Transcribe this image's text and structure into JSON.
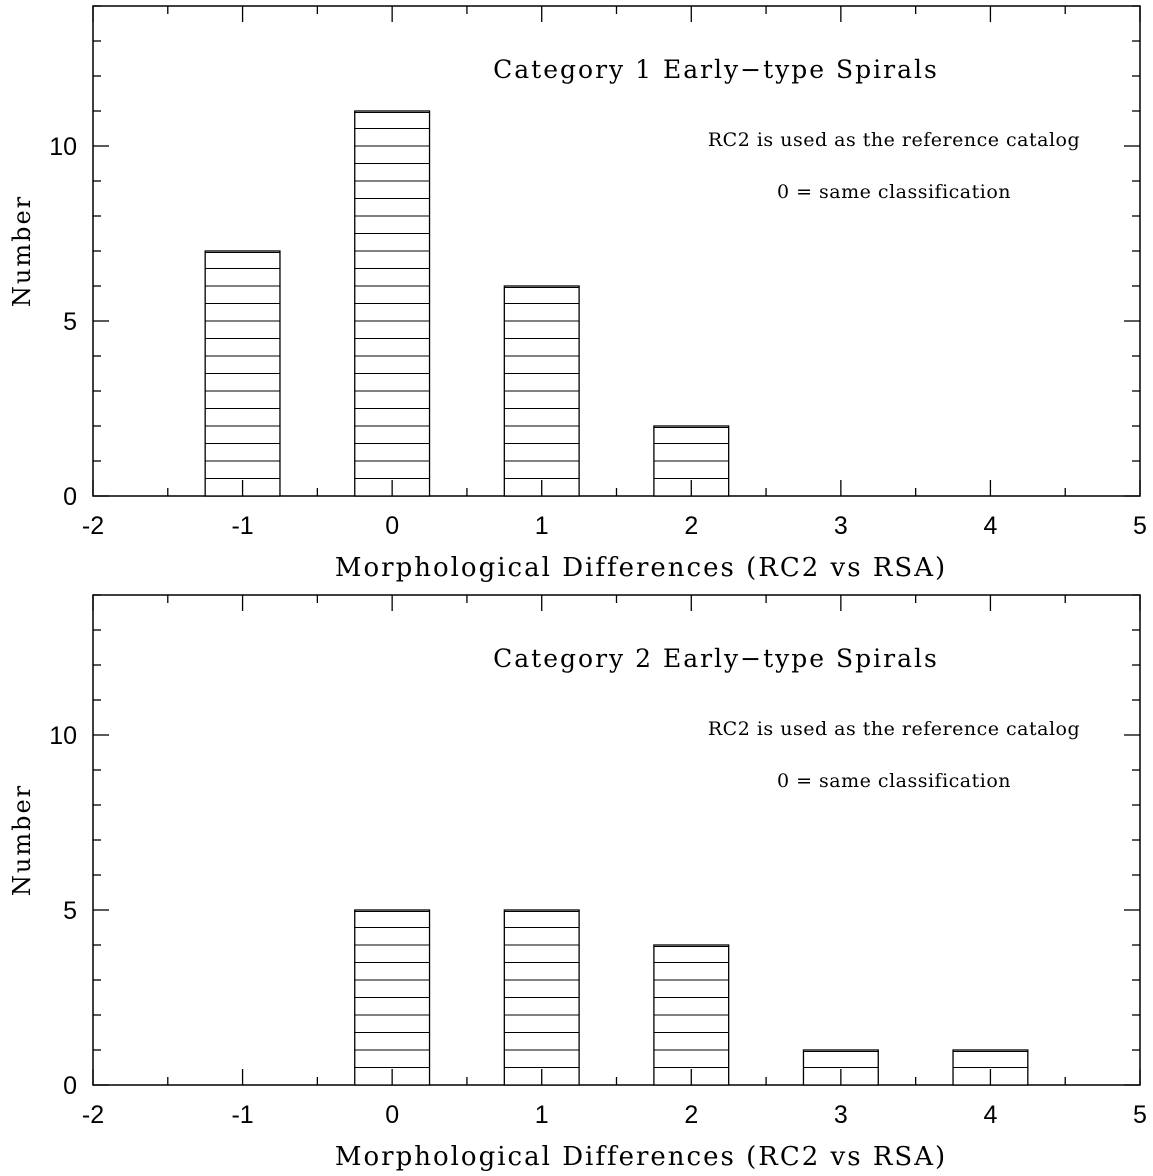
{
  "chart_data": [
    {
      "type": "bar",
      "title": "Category 1 Early−type Spirals",
      "annotations": [
        "RC2 is used as the reference catalog",
        "0 = same classification"
      ],
      "xlabel": "Morphological Differences (RC2 vs RSA)",
      "ylabel": "Number",
      "xlim": [
        -2,
        5
      ],
      "ylim": [
        0,
        14
      ],
      "xticks": [
        -2,
        -1,
        0,
        1,
        2,
        3,
        4,
        5
      ],
      "yticks": [
        0,
        5,
        10
      ],
      "bar_width": 0.5,
      "bar_fill": "horizontal-hatch",
      "grid": false,
      "x": [
        -1,
        0,
        1,
        2,
        3,
        4
      ],
      "values": [
        7,
        11,
        6,
        2,
        0,
        0
      ]
    },
    {
      "type": "bar",
      "title": "Category 2 Early−type Spirals",
      "annotations": [
        "RC2 is used as the reference catalog",
        "0 = same classification"
      ],
      "xlabel": "Morphological Differences (RC2 vs RSA)",
      "ylabel": "Number",
      "xlim": [
        -2,
        5
      ],
      "ylim": [
        0,
        14
      ],
      "xticks": [
        -2,
        -1,
        0,
        1,
        2,
        3,
        4,
        5
      ],
      "yticks": [
        0,
        5,
        10
      ],
      "bar_width": 0.5,
      "bar_fill": "horizontal-hatch",
      "grid": false,
      "x": [
        -1,
        0,
        1,
        2,
        3,
        4
      ],
      "values": [
        0,
        5,
        5,
        4,
        1,
        1
      ]
    }
  ]
}
